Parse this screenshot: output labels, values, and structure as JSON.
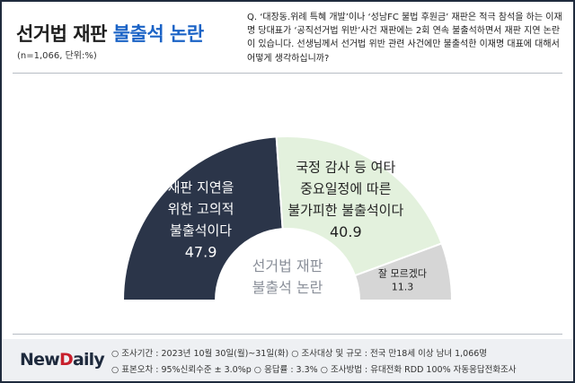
{
  "header": {
    "title_prefix": "선거법 재판",
    "title_highlight": "불출석 논란",
    "subtitle": "(n=1,066, 단위:%)",
    "question": "Q. ‘대장동.위례 특혜 개발’이나 ‘성남FC 불법 후원금’ 재판은 적극 참석을 하는 이재명 당대표가 ‘공직선거법 위반’사건 재판에는 2회 연속 불출석하면서 재판 지연 논란이 있습니다. 선생님께서 선거법 위반 관련 사건에만 불출석한 이재명 대표에 대해서 어떻게 생각하십니까?"
  },
  "chart_data": {
    "type": "pie",
    "variant": "semicircle-donut",
    "center_label": [
      "선거법 재판",
      "불출석 논란"
    ],
    "slices": [
      {
        "label": [
          "재판 지연을",
          "위한 고의적",
          "불출석이다"
        ],
        "value": 47.9,
        "color": "#2b3549",
        "text_color": "#ffffff"
      },
      {
        "label": [
          "국정 감사 등 여타",
          "중요일정에 따른",
          "불가피한 불출석이다"
        ],
        "value": 40.9,
        "color": "#e3f1dd",
        "text_color": "#222222"
      },
      {
        "label": [
          "잘 모르겠다"
        ],
        "value": 11.3,
        "color": "#d6d6d6",
        "text_color": "#222222"
      }
    ]
  },
  "footer": {
    "logo_main": "New",
    "logo_accent": "D",
    "logo_rest": "aily",
    "line1": "○ 조사기간 : 2023년 10월 30일(월)~31일(화)    ○ 조사대상 및 규모 : 전국 만18세 이상 남녀 1,066명",
    "line2": "○ 표본오차 : 95%신뢰수준 ± 3.0%p    ○ 응답률 : 3.3%    ○ 조사방법 : 유대전화 RDD 100% 자동응답전화조사"
  }
}
